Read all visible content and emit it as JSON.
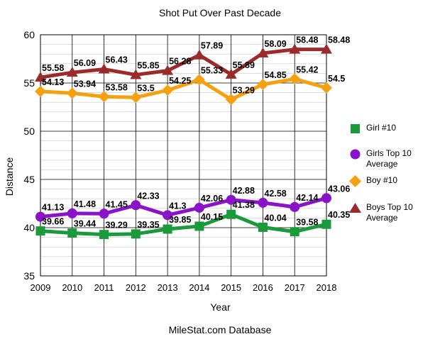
{
  "chart_data": {
    "type": "line",
    "title": "Shot Put Over Past Decade",
    "xlabel": "Year",
    "ylabel": "Distance",
    "source_text": "MileStat.com Database",
    "x": [
      "2009",
      "2010",
      "2011",
      "2012",
      "2013",
      "2014",
      "2015",
      "2016",
      "2017",
      "2018"
    ],
    "ylim": [
      35,
      60
    ],
    "yticks": [
      "35",
      "40",
      "45",
      "50",
      "55",
      "60"
    ],
    "grid": true,
    "legend_position": "right",
    "series": [
      {
        "name": "Girl #10",
        "color": "#1a9a3a",
        "marker": "square",
        "values": [
          39.66,
          39.44,
          39.29,
          39.35,
          39.85,
          40.15,
          41.38,
          40.04,
          39.58,
          40.35
        ],
        "labels": [
          "39.66",
          "39.44",
          "39.29",
          "39.35",
          "39.85",
          "40.15",
          "41.38",
          "40.04",
          "39.58",
          "40.35"
        ]
      },
      {
        "name": "Girls Top 10 Average",
        "color": "#8a12c8",
        "marker": "circle",
        "values": [
          41.13,
          41.48,
          41.45,
          42.33,
          41.3,
          42.06,
          42.88,
          42.58,
          42.14,
          43.06
        ],
        "labels": [
          "41.13",
          "41.48",
          "41.45",
          "42.33",
          "41.3",
          "42.06",
          "42.88",
          "42.58",
          "42.14",
          "43.06"
        ]
      },
      {
        "name": "Boy #10",
        "color": "#f5a00f",
        "marker": "diamond",
        "values": [
          54.13,
          53.94,
          53.58,
          53.5,
          54.25,
          55.33,
          53.29,
          54.85,
          55.42,
          54.5
        ],
        "labels": [
          "54.13",
          "53.94",
          "53.58",
          "53.5",
          "54.25",
          "55.33",
          "53.29",
          "54.85",
          "55.42",
          "54.5"
        ]
      },
      {
        "name": "Boys Top 10 Average",
        "color": "#9b2a2a",
        "marker": "triangle",
        "values": [
          55.58,
          56.09,
          56.43,
          55.85,
          56.28,
          57.89,
          55.89,
          58.09,
          58.48,
          58.48
        ],
        "labels": [
          "55.58",
          "56.09",
          "56.43",
          "55.85",
          "56.28",
          "57.89",
          "55.89",
          "58.09",
          "58.48",
          "58.48"
        ]
      }
    ]
  }
}
